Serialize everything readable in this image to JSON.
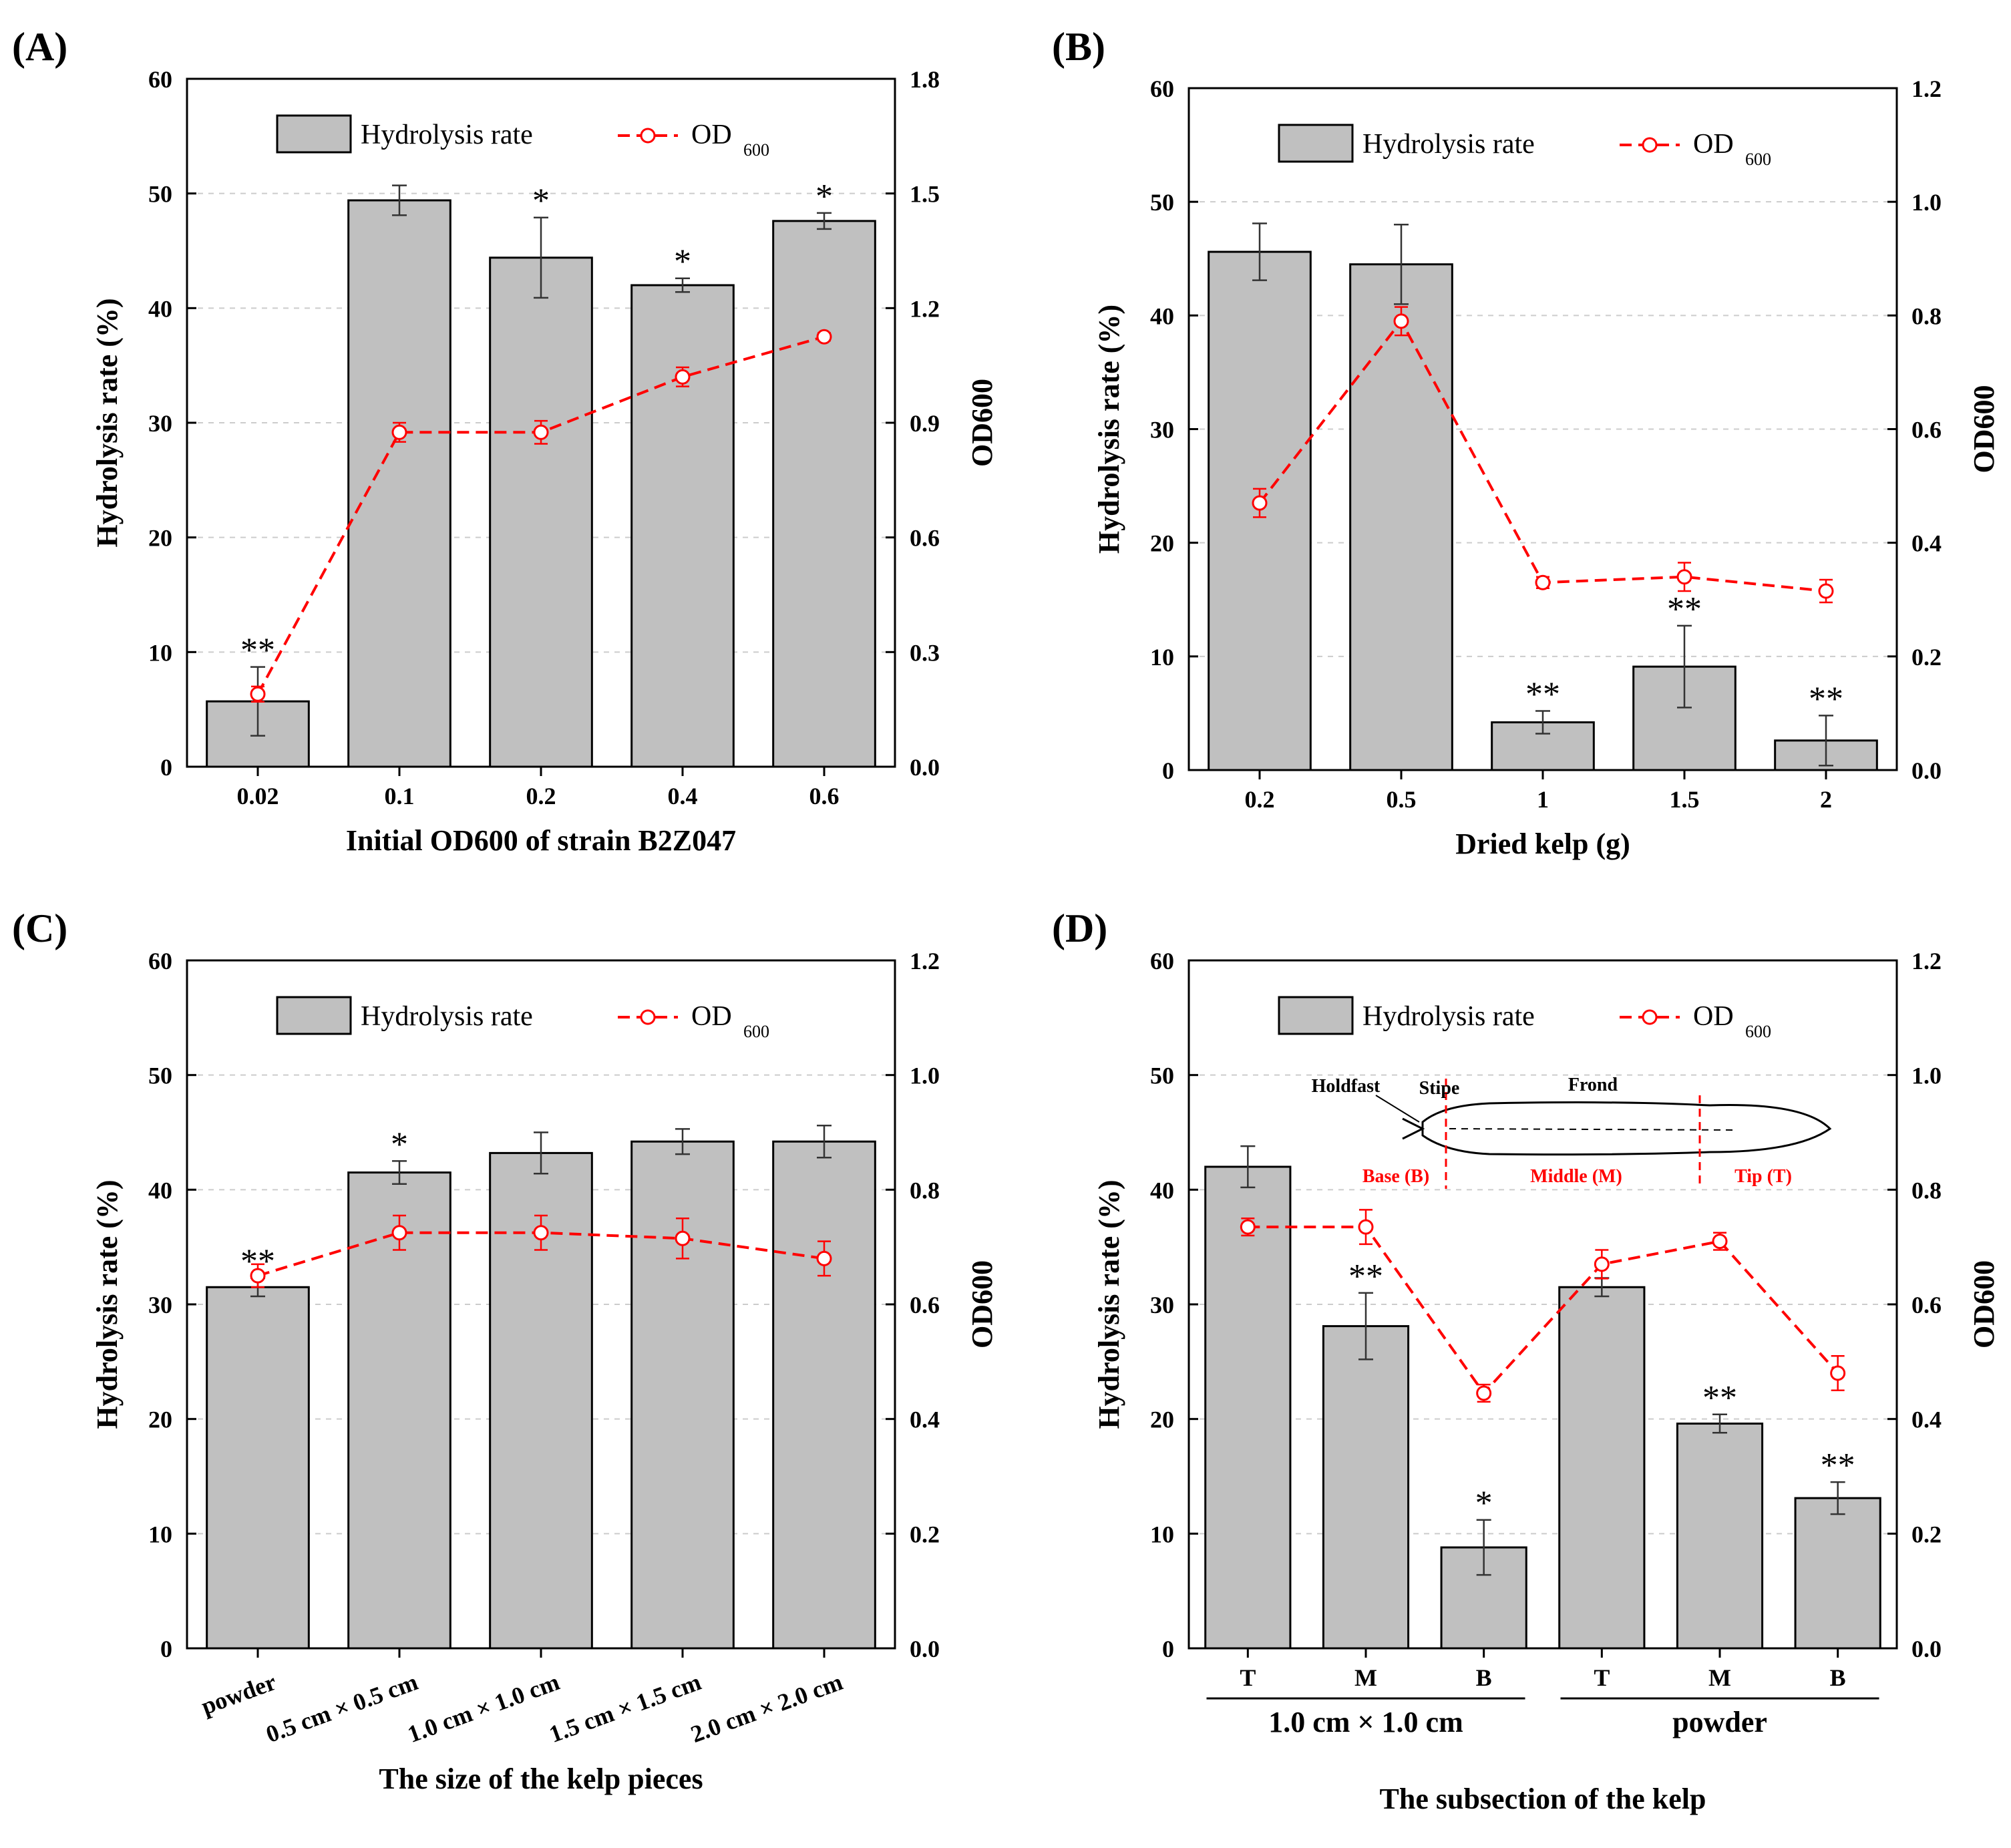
{
  "colors": {
    "bar_fill": "#c0c0c0",
    "bar_stroke": "#000000",
    "line": "#ff0000",
    "grid": "#cccccc"
  },
  "icons": {
    "kelp": "kelp-diagram-icon"
  },
  "chart_data": [
    {
      "panel": "(A)",
      "type": "bar",
      "title": "",
      "xlabel": "Initial OD600 of strain B2Z047",
      "ylabel": "Hydrolysis rate (%)",
      "y2label": "OD600",
      "ylim": [
        0,
        60
      ],
      "y2lim": [
        0,
        1.8
      ],
      "yticks": [
        "0",
        "10",
        "20",
        "30",
        "40",
        "50",
        "60"
      ],
      "y2ticks": [
        "0.0",
        "0.3",
        "0.6",
        "0.9",
        "1.2",
        "1.5",
        "1.8"
      ],
      "categories": [
        "0.02",
        "0.1",
        "0.2",
        "0.4",
        "0.6"
      ],
      "tick_rotated": false,
      "legend": {
        "bar": "Hydrolysis rate",
        "line": "OD",
        "line_sub": "600"
      },
      "series": [
        {
          "name": "Hydrolysis rate",
          "axis": "left",
          "values": [
            5.7,
            49.4,
            44.4,
            42.0,
            47.6
          ],
          "errors": [
            3.0,
            1.3,
            3.5,
            0.6,
            0.7
          ]
        },
        {
          "name": "OD600",
          "axis": "right",
          "values": [
            0.19,
            0.875,
            0.875,
            1.02,
            1.125
          ],
          "errors": [
            0.02,
            0.025,
            0.03,
            0.025,
            0.01
          ]
        }
      ],
      "significance": [
        "**",
        "",
        "*",
        "*",
        "*"
      ],
      "group_labels": []
    },
    {
      "panel": "(B)",
      "type": "bar",
      "title": "",
      "xlabel": "Dried kelp (g)",
      "ylabel": "Hydrolysis rate (%)",
      "y2label": "OD600",
      "ylim": [
        0,
        60
      ],
      "y2lim": [
        0,
        1.2
      ],
      "yticks": [
        "0",
        "10",
        "20",
        "30",
        "40",
        "50",
        "60"
      ],
      "y2ticks": [
        "0.0",
        "0.2",
        "0.4",
        "0.6",
        "0.8",
        "1.0",
        "1.2"
      ],
      "categories": [
        "0.2",
        "0.5",
        "1",
        "1.5",
        "2"
      ],
      "tick_rotated": false,
      "legend": {
        "bar": "Hydrolysis rate",
        "line": "OD",
        "line_sub": "600"
      },
      "series": [
        {
          "name": "Hydrolysis rate",
          "axis": "left",
          "values": [
            45.6,
            44.5,
            4.2,
            9.1,
            2.6
          ],
          "errors": [
            2.5,
            3.5,
            1.0,
            3.6,
            2.2
          ]
        },
        {
          "name": "OD600",
          "axis": "right",
          "values": [
            0.47,
            0.79,
            0.33,
            0.34,
            0.315
          ],
          "errors": [
            0.025,
            0.025,
            0.01,
            0.025,
            0.02
          ]
        }
      ],
      "significance": [
        "",
        "",
        "**",
        "**",
        "**"
      ],
      "group_labels": []
    },
    {
      "panel": "(C)",
      "type": "bar",
      "title": "",
      "xlabel": "The size of the kelp pieces",
      "ylabel": "Hydrolysis rate (%)",
      "y2label": "OD600",
      "ylim": [
        0,
        60
      ],
      "y2lim": [
        0,
        1.2
      ],
      "yticks": [
        "0",
        "10",
        "20",
        "30",
        "40",
        "50",
        "60"
      ],
      "y2ticks": [
        "0.0",
        "0.2",
        "0.4",
        "0.6",
        "0.8",
        "1.0",
        "1.2"
      ],
      "categories": [
        "powder",
        "0.5 cm × 0.5 cm",
        "1.0 cm × 1.0 cm",
        "1.5 cm × 1.5 cm",
        "2.0 cm × 2.0 cm"
      ],
      "tick_rotated": true,
      "legend": {
        "bar": "Hydrolysis rate",
        "line": "OD",
        "line_sub": "600"
      },
      "series": [
        {
          "name": "Hydrolysis rate",
          "axis": "left",
          "values": [
            31.5,
            41.5,
            43.2,
            44.2,
            44.2
          ],
          "errors": [
            0.8,
            1.0,
            1.8,
            1.1,
            1.4
          ]
        },
        {
          "name": "OD600",
          "axis": "right",
          "values": [
            0.65,
            0.725,
            0.725,
            0.715,
            0.68
          ],
          "errors": [
            0.02,
            0.03,
            0.03,
            0.035,
            0.03
          ]
        }
      ],
      "significance": [
        "**",
        "*",
        "",
        "",
        ""
      ],
      "group_labels": []
    },
    {
      "panel": "(D)",
      "type": "bar",
      "title": "",
      "xlabel": "The subsection of the  kelp",
      "ylabel": "Hydrolysis rate (%)",
      "y2label": "OD600",
      "ylim": [
        0,
        60
      ],
      "y2lim": [
        0,
        1.2
      ],
      "yticks": [
        "0",
        "10",
        "20",
        "30",
        "40",
        "50",
        "60"
      ],
      "y2ticks": [
        "0.0",
        "0.2",
        "0.4",
        "0.6",
        "0.8",
        "1.0",
        "1.2"
      ],
      "categories": [
        "T",
        "M",
        "B",
        "T",
        "M",
        "B"
      ],
      "tick_rotated": false,
      "legend": {
        "bar": "Hydrolysis rate",
        "line": "OD",
        "line_sub": "600"
      },
      "series": [
        {
          "name": "Hydrolysis rate",
          "axis": "left",
          "values": [
            42.0,
            28.1,
            8.8,
            31.5,
            19.6,
            13.1
          ],
          "errors": [
            1.8,
            2.9,
            2.4,
            0.8,
            0.8,
            1.4
          ]
        },
        {
          "name": "OD600",
          "axis": "right",
          "values": [
            0.735,
            0.735,
            0.445,
            0.67,
            0.71,
            0.48
          ],
          "errors": [
            0.015,
            0.03,
            0.015,
            0.025,
            0.015,
            0.03
          ]
        }
      ],
      "significance": [
        "",
        "**",
        "*",
        "",
        "**",
        "**"
      ],
      "group_labels": [
        {
          "label": "1.0 cm × 1.0 cm",
          "from": 0,
          "to": 2
        },
        {
          "label": "powder",
          "from": 3,
          "to": 5
        }
      ],
      "inset": {
        "parts": [
          "Holdfast",
          "Stipe",
          "Frond"
        ],
        "sections": [
          "Base (B)",
          "Middle (M)",
          "Tip (T)"
        ]
      }
    }
  ]
}
